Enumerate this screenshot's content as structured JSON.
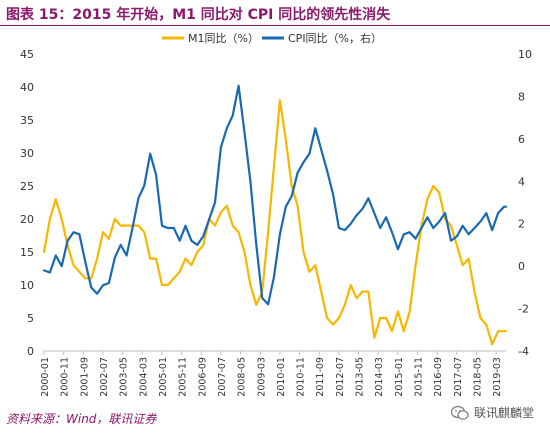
{
  "title": "图表 15：2015 年开始，M1 同比对 CPI 同比的领先性消失",
  "source": "资料来源：Wind，联讯证券",
  "watermark": "联讯麒麟堂",
  "chart_data": {
    "type": "line",
    "title": "图表 15：2015 年开始，M1 同比对 CPI 同比的领先性消失",
    "x_tick_labels": [
      "2000-01",
      "2000-11",
      "2001-09",
      "2002-07",
      "2003-05",
      "2004-03",
      "2005-01",
      "2005-11",
      "2006-09",
      "2007-07",
      "2008-05",
      "2009-03",
      "2010-01",
      "2010-11",
      "2011-09",
      "2012-07",
      "2013-05",
      "2014-03",
      "2015-01",
      "2015-11",
      "2016-09",
      "2017-07",
      "2018-05",
      "2019-03"
    ],
    "x_range": [
      "2000-01",
      "2019-08"
    ],
    "left_axis": {
      "ylim": [
        0,
        45
      ],
      "ticks": [
        0,
        5,
        10,
        15,
        20,
        25,
        30,
        35,
        40,
        45
      ]
    },
    "right_axis": {
      "ylim": [
        -4,
        10
      ],
      "ticks": [
        -4,
        -2,
        0,
        2,
        4,
        6,
        8,
        10
      ]
    },
    "legend_position": "top-center",
    "grid": false,
    "series": [
      {
        "name": "M1同比（%）",
        "axis": "left",
        "color": "#f5b800",
        "x": [
          "2000-01",
          "2000-04",
          "2000-07",
          "2000-10",
          "2001-01",
          "2001-04",
          "2001-07",
          "2001-10",
          "2002-01",
          "2002-04",
          "2002-07",
          "2002-10",
          "2003-01",
          "2003-04",
          "2003-07",
          "2003-10",
          "2004-01",
          "2004-04",
          "2004-07",
          "2004-10",
          "2005-01",
          "2005-04",
          "2005-07",
          "2005-10",
          "2006-01",
          "2006-04",
          "2006-07",
          "2006-10",
          "2007-01",
          "2007-04",
          "2007-07",
          "2007-10",
          "2008-01",
          "2008-04",
          "2008-07",
          "2008-10",
          "2009-01",
          "2009-04",
          "2009-07",
          "2009-10",
          "2010-01",
          "2010-04",
          "2010-07",
          "2010-10",
          "2011-01",
          "2011-04",
          "2011-07",
          "2011-10",
          "2012-01",
          "2012-04",
          "2012-07",
          "2012-10",
          "2013-01",
          "2013-04",
          "2013-07",
          "2013-10",
          "2014-01",
          "2014-04",
          "2014-07",
          "2014-10",
          "2015-01",
          "2015-04",
          "2015-07",
          "2015-10",
          "2016-01",
          "2016-04",
          "2016-07",
          "2016-10",
          "2017-01",
          "2017-04",
          "2017-07",
          "2017-10",
          "2018-01",
          "2018-04",
          "2018-07",
          "2018-10",
          "2019-01",
          "2019-04",
          "2019-07",
          "2019-08"
        ],
        "values": [
          15,
          20,
          23,
          20,
          16,
          13,
          12,
          11,
          11,
          14,
          18,
          17,
          20,
          19,
          19,
          19,
          19,
          18,
          14,
          14,
          10,
          10,
          11,
          12,
          14,
          13,
          15,
          16,
          20,
          19,
          21,
          22,
          19,
          18,
          15,
          10,
          7,
          9,
          18,
          28,
          38,
          32,
          25,
          22,
          15,
          12,
          13,
          9,
          5,
          4,
          5,
          7,
          10,
          8,
          9,
          9,
          2,
          5,
          5,
          3,
          6,
          3,
          6,
          13,
          19,
          23,
          25,
          24,
          20,
          19,
          16,
          13,
          14,
          9,
          5,
          4,
          1,
          3,
          3,
          3
        ]
      },
      {
        "name": "CPI同比（%，右）",
        "axis": "right",
        "color": "#1a69b0",
        "x": [
          "2000-01",
          "2000-04",
          "2000-07",
          "2000-10",
          "2001-01",
          "2001-04",
          "2001-07",
          "2001-10",
          "2002-01",
          "2002-04",
          "2002-07",
          "2002-10",
          "2003-01",
          "2003-04",
          "2003-07",
          "2003-10",
          "2004-01",
          "2004-04",
          "2004-07",
          "2004-10",
          "2005-01",
          "2005-04",
          "2005-07",
          "2005-10",
          "2006-01",
          "2006-04",
          "2006-07",
          "2006-10",
          "2007-01",
          "2007-04",
          "2007-07",
          "2007-10",
          "2008-01",
          "2008-04",
          "2008-07",
          "2008-10",
          "2009-01",
          "2009-04",
          "2009-07",
          "2009-10",
          "2010-01",
          "2010-04",
          "2010-07",
          "2010-10",
          "2011-01",
          "2011-04",
          "2011-07",
          "2011-10",
          "2012-01",
          "2012-04",
          "2012-07",
          "2012-10",
          "2013-01",
          "2013-04",
          "2013-07",
          "2013-10",
          "2014-01",
          "2014-04",
          "2014-07",
          "2014-10",
          "2015-01",
          "2015-04",
          "2015-07",
          "2015-10",
          "2016-01",
          "2016-04",
          "2016-07",
          "2016-10",
          "2017-01",
          "2017-04",
          "2017-07",
          "2017-10",
          "2018-01",
          "2018-04",
          "2018-07",
          "2018-10",
          "2019-01",
          "2019-04",
          "2019-07",
          "2019-08"
        ],
        "values": [
          -0.2,
          -0.3,
          0.5,
          0.0,
          1.2,
          1.6,
          1.5,
          0.2,
          -1.0,
          -1.3,
          -0.9,
          -0.8,
          0.4,
          1.0,
          0.5,
          1.8,
          3.2,
          3.8,
          5.3,
          4.3,
          1.9,
          1.8,
          1.8,
          1.2,
          1.9,
          1.2,
          1.0,
          1.4,
          2.2,
          3.0,
          5.6,
          6.5,
          7.1,
          8.5,
          6.3,
          4.0,
          1.0,
          -1.5,
          -1.8,
          -0.5,
          1.5,
          2.8,
          3.3,
          4.4,
          4.9,
          5.3,
          6.5,
          5.5,
          4.5,
          3.4,
          1.8,
          1.7,
          2.0,
          2.4,
          2.7,
          3.2,
          2.5,
          1.8,
          2.3,
          1.6,
          0.8,
          1.5,
          1.6,
          1.3,
          1.8,
          2.3,
          1.8,
          2.1,
          2.5,
          1.2,
          1.4,
          1.9,
          1.5,
          1.8,
          2.1,
          2.5,
          1.7,
          2.5,
          2.8,
          2.8
        ]
      }
    ]
  }
}
